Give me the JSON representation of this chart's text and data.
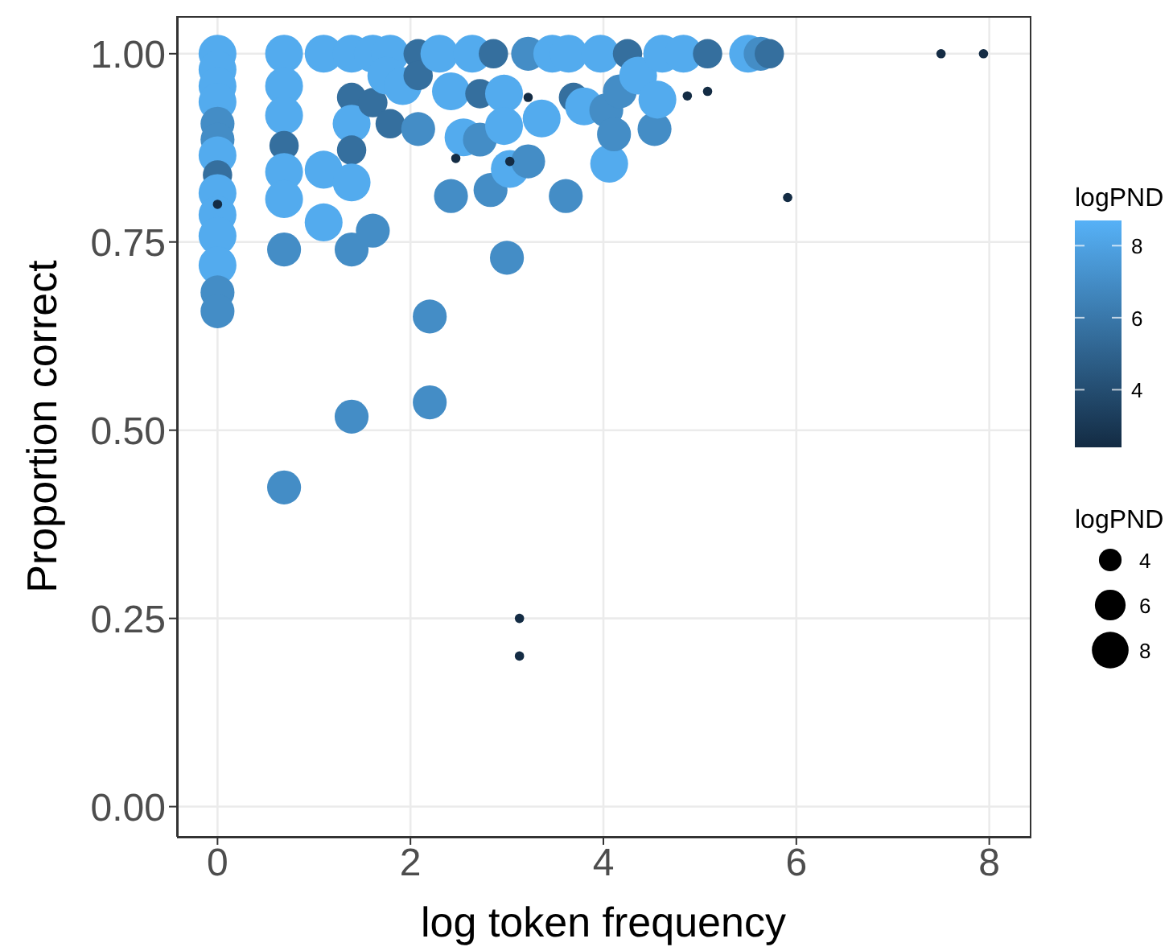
{
  "chart_data": {
    "type": "bubble",
    "xlabel": "log token frequency",
    "ylabel": "Proportion correct",
    "clabel": "logPND",
    "legend_title": "logPND",
    "grid": true,
    "xlim": [
      -0.42,
      8.42
    ],
    "xticks": [
      0,
      2,
      4,
      6,
      8
    ],
    "ylim": [
      -0.04,
      1.05
    ],
    "yticks": [
      {
        "value": 0,
        "label": "0.00"
      },
      0.25,
      {
        "value": 0.5,
        "label": "0.50"
      },
      0.75,
      {
        "value": 1,
        "label": "1.00"
      }
    ],
    "clim": [
      2.4,
      8.7
    ],
    "cticks": [
      4,
      6,
      8
    ],
    "size_legend": [
      {
        "value": 12.4,
        "label": "4"
      },
      {
        "value": 22.8,
        "label": "6"
      },
      {
        "value": 32.6,
        "label": "8"
      }
    ],
    "x": [
      0,
      0,
      0,
      0,
      0,
      0,
      0,
      0,
      0,
      0,
      0,
      0,
      0,
      0,
      0.69,
      0.69,
      0.69,
      0.69,
      0.69,
      0.69,
      0.69,
      0.69,
      1.1,
      1.1,
      1.1,
      1.39,
      1.39,
      1.39,
      1.39,
      1.39,
      1.39,
      1.39,
      1.61,
      1.61,
      1.61,
      1.79,
      1.75,
      1.79,
      1.92,
      2.08,
      2.08,
      2.08,
      2.2,
      2.2,
      2.3,
      2.42,
      2.42,
      2.55,
      2.64,
      2.72,
      2.72,
      2.83,
      2.86,
      2.97,
      2.97,
      3.0,
      3.03,
      3.22,
      3.22,
      3.36,
      3.47,
      3.64,
      3.61,
      3.69,
      3.8,
      3.97,
      4.03,
      4.06,
      4.11,
      4.17,
      4.25,
      4.36,
      4.53,
      4.56,
      4.61,
      4.83,
      5.08,
      5.5,
      5.63,
      5.72,
      0,
      2.47,
      3.03,
      3.13,
      3.13,
      3.22,
      4.87,
      5.08,
      5.91,
      7.5,
      7.94
    ],
    "values": [
      1.0,
      0.979,
      0.957,
      0.936,
      0.907,
      0.886,
      0.865,
      0.839,
      0.815,
      0.786,
      0.758,
      0.719,
      0.683,
      0.658,
      1.0,
      0.957,
      0.918,
      0.878,
      0.843,
      0.807,
      0.74,
      0.424,
      1.0,
      0.846,
      0.776,
      1.0,
      0.942,
      0.907,
      0.872,
      0.829,
      0.74,
      0.518,
      1.0,
      0.935,
      0.765,
      1.0,
      0.971,
      0.907,
      0.957,
      1.0,
      0.971,
      0.9,
      0.651,
      0.537,
      1.0,
      0.95,
      0.811,
      0.889,
      1.0,
      0.947,
      0.886,
      0.819,
      1.0,
      0.947,
      0.904,
      0.729,
      0.847,
      1.0,
      0.857,
      0.914,
      1.0,
      1.0,
      0.811,
      0.942,
      0.93,
      1.0,
      0.925,
      0.854,
      0.893,
      0.95,
      1.0,
      0.971,
      0.9,
      0.939,
      1.0,
      1.0,
      1.0,
      1.0,
      1.0,
      1.0,
      0.8,
      0.861,
      0.857,
      0.25,
      0.2,
      0.942,
      0.944,
      0.95,
      0.809,
      1.0,
      1.0
    ],
    "cvalues": [
      8.4,
      8.4,
      8.4,
      8.4,
      7.0,
      7.0,
      8.4,
      5.6,
      8.4,
      8.4,
      8.4,
      8.4,
      7.0,
      7.0,
      8.4,
      8.4,
      8.4,
      5.6,
      8.4,
      8.4,
      7.0,
      7.0,
      8.4,
      8.4,
      8.4,
      8.4,
      5.6,
      8.4,
      5.6,
      8.4,
      7.0,
      7.0,
      8.4,
      5.6,
      7.0,
      8.4,
      8.4,
      5.6,
      8.4,
      5.6,
      5.6,
      7.0,
      7.0,
      7.0,
      8.4,
      8.4,
      7.0,
      8.4,
      8.4,
      5.6,
      7.0,
      7.0,
      5.6,
      8.4,
      8.4,
      7.0,
      8.4,
      7.0,
      7.0,
      8.4,
      8.4,
      8.4,
      7.0,
      5.6,
      8.4,
      8.4,
      7.0,
      8.4,
      7.0,
      7.0,
      5.6,
      8.4,
      7.0,
      8.4,
      8.4,
      8.4,
      5.6,
      8.4,
      7.0,
      5.6,
      2.45,
      2.45,
      2.45,
      2.45,
      2.45,
      2.45,
      2.45,
      2.45,
      2.45,
      2.45,
      2.45
    ],
    "sizes": [
      34.6,
      34.6,
      34.6,
      34.6,
      27.8,
      27.8,
      34.6,
      20.8,
      34.6,
      34.6,
      34.6,
      34.6,
      27.8,
      27.8,
      34.6,
      34.6,
      34.6,
      20.8,
      34.6,
      34.6,
      27.8,
      27.8,
      34.6,
      34.6,
      34.6,
      34.6,
      20.8,
      34.6,
      20.8,
      34.6,
      27.8,
      27.8,
      34.6,
      20.8,
      27.8,
      34.6,
      34.6,
      20.8,
      34.6,
      20.8,
      20.8,
      27.8,
      27.8,
      27.8,
      34.6,
      34.6,
      27.8,
      34.6,
      34.6,
      20.8,
      27.8,
      27.8,
      20.8,
      34.6,
      34.6,
      27.8,
      34.6,
      27.8,
      27.8,
      34.6,
      34.6,
      34.6,
      27.8,
      20.8,
      34.6,
      34.6,
      27.8,
      34.6,
      27.8,
      27.8,
      20.8,
      34.6,
      27.8,
      34.6,
      34.6,
      34.6,
      20.8,
      34.6,
      27.8,
      20.8,
      2.1,
      2.1,
      2.1,
      2.1,
      2.1,
      2.1,
      2.1,
      2.1,
      2.1,
      2.1,
      2.1
    ]
  }
}
